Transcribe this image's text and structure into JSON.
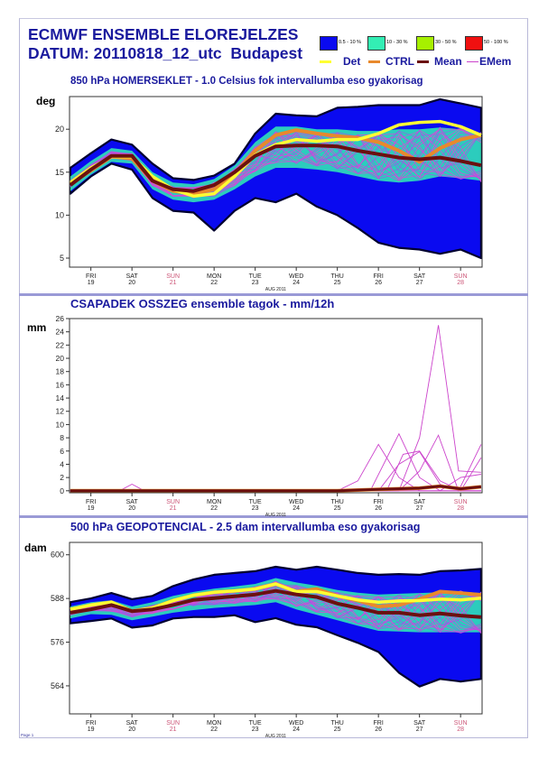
{
  "header": {
    "title": "ECMWF ENSEMBLE ELOREJELZES",
    "subtitle": "DATUM: 20110818_12_utc  Budapest"
  },
  "legend": {
    "bands": [
      {
        "label": "0.5 - 10 %",
        "color": "#0a0af0"
      },
      {
        "label": "10 - 30 %",
        "color": "#33eeb4"
      },
      {
        "label": "30 - 50 %",
        "color": "#a6f000"
      },
      {
        "label": "50 - 100 %",
        "color": "#f01010"
      }
    ],
    "lines": [
      {
        "label": "Det",
        "color": "#ffff33"
      },
      {
        "label": "CTRL",
        "color": "#e8892c"
      },
      {
        "label": "Mean",
        "color": "#6b1010"
      },
      {
        "label": "EMem",
        "color": "#cc44cc"
      }
    ]
  },
  "footer": "Page 1",
  "x_axis": {
    "month_label": "AUG 2011",
    "ticks": [
      {
        "day": 19,
        "weekday": "FRI",
        "date": "19",
        "weekend": false
      },
      {
        "day": 20,
        "weekday": "SAT",
        "date": "20",
        "weekend": false
      },
      {
        "day": 21,
        "weekday": "SUN",
        "date": "21",
        "weekend": true
      },
      {
        "day": 22,
        "weekday": "MON",
        "date": "22",
        "weekend": false
      },
      {
        "day": 23,
        "weekday": "TUE",
        "date": "23",
        "weekend": false
      },
      {
        "day": 24,
        "weekday": "WED",
        "date": "24",
        "weekend": false
      },
      {
        "day": 25,
        "weekday": "THU",
        "date": "25",
        "weekend": false
      },
      {
        "day": 26,
        "weekday": "FRI",
        "date": "26",
        "weekend": false
      },
      {
        "day": 27,
        "weekday": "SAT",
        "date": "27",
        "weekend": false
      },
      {
        "day": 28,
        "weekday": "SUN",
        "date": "28",
        "weekend": true
      }
    ]
  },
  "chart_data": [
    {
      "id": "temp",
      "type": "area",
      "title": "850 hPa HOMERSEKLET - 1.0 Celsius fok intervallumba eso gyakorisag",
      "ylabel": "deg",
      "xlabel": "AUG 2011",
      "ylim": [
        3.95,
        23.8
      ],
      "yticks": [
        5,
        10,
        15,
        20
      ],
      "x": [
        18.5,
        19,
        19.5,
        20,
        20.5,
        21,
        21.5,
        22,
        22.5,
        23,
        23.5,
        24,
        24.5,
        25,
        25.5,
        26,
        26.5,
        27,
        27.5,
        28,
        28.5
      ],
      "outer_max": [
        15.5,
        17.2,
        18.8,
        18.2,
        16,
        14.3,
        14.1,
        14.6,
        16,
        19.5,
        21.8,
        21.6,
        21.5,
        22.5,
        22.6,
        22.8,
        22.8,
        22.8,
        23.5,
        23,
        22.5
      ],
      "outer_min": [
        12.5,
        14.5,
        16,
        15.3,
        12,
        10.5,
        10.3,
        8.2,
        10.5,
        12,
        11.5,
        12.5,
        11,
        10,
        8.5,
        6.8,
        6.2,
        6,
        5.5,
        6,
        5
      ],
      "inner_max": [
        14.5,
        16.3,
        17.8,
        17.5,
        15,
        13.8,
        13.6,
        14.2,
        15.8,
        18.5,
        20.3,
        20.3,
        20,
        20,
        19.8,
        19.8,
        20,
        20,
        20.2,
        20,
        19.5
      ],
      "inner_min": [
        12.8,
        14.7,
        16.2,
        16,
        13,
        11.8,
        11.5,
        11.8,
        13,
        14.5,
        15.5,
        15.5,
        15.3,
        15,
        14.5,
        14,
        13.8,
        14,
        14.5,
        14.3,
        14
      ],
      "mean": [
        13.5,
        15.3,
        16.9,
        16.9,
        14,
        13,
        12.8,
        13.5,
        15,
        16.9,
        18,
        18.1,
        18.1,
        18,
        17.5,
        17.1,
        16.7,
        16.5,
        16.7,
        16.3,
        15.8
      ],
      "det": [
        13.8,
        15.5,
        16.8,
        16.8,
        14.5,
        13,
        12.2,
        12.5,
        14.5,
        17,
        18.2,
        18.8,
        18.6,
        18.8,
        18.8,
        19.5,
        20.5,
        20.8,
        20.9,
        20.3,
        19.3
      ],
      "ctrl": [
        13.6,
        15.2,
        16.8,
        16.6,
        14,
        12.8,
        12.5,
        13,
        14.8,
        17.5,
        19.3,
        19.9,
        19.5,
        19.2,
        19,
        18.5,
        17.5,
        16.2,
        17.8,
        18.8,
        19.3
      ]
    },
    {
      "id": "precip",
      "type": "line",
      "title": "CSAPADEK OSSZEG ensemble tagok - mm/12h",
      "ylabel": "mm",
      "xlabel": "AUG 2011",
      "ylim": [
        -0.3,
        26
      ],
      "yticks": [
        0,
        2,
        4,
        6,
        8,
        10,
        12,
        14,
        16,
        18,
        20,
        22,
        24,
        26
      ],
      "members": [
        [
          [
            18.5,
            0
          ],
          [
            25.5,
            0
          ],
          [
            26.5,
            0
          ],
          [
            27.0,
            8
          ],
          [
            27.46,
            25
          ],
          [
            27.95,
            3
          ],
          [
            28.5,
            2.8
          ]
        ],
        [
          [
            18.5,
            0
          ],
          [
            25,
            0
          ],
          [
            25.5,
            1.5
          ],
          [
            26,
            7
          ],
          [
            26.5,
            2
          ],
          [
            27,
            0
          ],
          [
            28.5,
            0
          ]
        ],
        [
          [
            18.5,
            0
          ],
          [
            25.8,
            0
          ],
          [
            26.5,
            8.6
          ],
          [
            27,
            2
          ],
          [
            27.5,
            0
          ],
          [
            28.5,
            0
          ]
        ],
        [
          [
            18.5,
            0
          ],
          [
            26,
            0
          ],
          [
            26.5,
            4
          ],
          [
            27,
            5.9
          ],
          [
            27.5,
            1
          ],
          [
            28,
            0
          ],
          [
            28.5,
            0
          ]
        ],
        [
          [
            18.5,
            0
          ],
          [
            26.5,
            0
          ],
          [
            27,
            3
          ],
          [
            27.46,
            8.4
          ],
          [
            27.95,
            0
          ],
          [
            28.5,
            7
          ]
        ],
        [
          [
            18.5,
            0
          ],
          [
            26.2,
            0
          ],
          [
            26.6,
            5.5
          ],
          [
            27,
            6
          ],
          [
            27.5,
            1.5
          ],
          [
            28,
            0
          ],
          [
            28.5,
            5
          ]
        ],
        [
          [
            18.5,
            0
          ],
          [
            27.5,
            0
          ],
          [
            28,
            2
          ],
          [
            28.5,
            2.5
          ]
        ],
        [
          [
            18.5,
            0
          ],
          [
            19.7,
            0
          ],
          [
            20,
            1
          ],
          [
            20.3,
            0
          ],
          [
            28.5,
            0
          ]
        ]
      ],
      "mean": [
        [
          18.5,
          0
        ],
        [
          25,
          0
        ],
        [
          26,
          0.2
        ],
        [
          27,
          0.4
        ],
        [
          27.5,
          0.7
        ],
        [
          28,
          0.3
        ],
        [
          28.5,
          0.6
        ]
      ]
    },
    {
      "id": "geo",
      "type": "area",
      "title": "500 hPa GEOPOTENCIAL - 2.5 dam intervallumba eso gyakorisag",
      "ylabel": "dam",
      "xlabel": "AUG 2011",
      "ylim": [
        556.3,
        603.4
      ],
      "yticks": [
        564,
        576,
        588,
        600
      ],
      "x": [
        18.5,
        19,
        19.5,
        20,
        20.5,
        21,
        21.5,
        22,
        22.5,
        23,
        23.5,
        24,
        24.5,
        25,
        25.5,
        26,
        26.5,
        27,
        27.5,
        28,
        28.5
      ],
      "outer_max": [
        587,
        588,
        589.5,
        587.8,
        588.7,
        591.4,
        593.2,
        594.5,
        595,
        595.5,
        596.7,
        595.9,
        596.7,
        595.9,
        595,
        594.5,
        594.7,
        594.5,
        595.5,
        595.7,
        596.1
      ],
      "outer_min": [
        581.2,
        581.8,
        582.5,
        580,
        580.6,
        582.5,
        582.9,
        582.9,
        583.4,
        581.5,
        582.6,
        580.8,
        580.1,
        577.9,
        575.8,
        573.3,
        567.6,
        563.8,
        565.9,
        565.2,
        565.9
      ],
      "inner_max": [
        585.8,
        587,
        587.5,
        585.8,
        587,
        588.7,
        589.8,
        590.7,
        591.3,
        592,
        593.6,
        592.4,
        591.5,
        590.3,
        589.6,
        589.1,
        589.3,
        589.5,
        589.7,
        589.9,
        589.5
      ],
      "inner_min": [
        582.5,
        583.7,
        583.5,
        582,
        583,
        584.1,
        584.8,
        585.4,
        585.8,
        586.2,
        587,
        585,
        583.5,
        582,
        580.5,
        579.1,
        578.9,
        578.7,
        578.7,
        578.7,
        578.7
      ],
      "mean": [
        584.1,
        585,
        586.2,
        584.5,
        585,
        586.2,
        587.6,
        588.1,
        588.6,
        589.1,
        590.1,
        589.1,
        588.4,
        586.6,
        585.4,
        584.1,
        584.1,
        583.4,
        583.9,
        583.3,
        582.9
      ],
      "det": [
        585,
        586.2,
        587,
        584.5,
        585.4,
        587.4,
        588.9,
        589.7,
        590.1,
        590.6,
        592,
        589.9,
        589.9,
        588.7,
        587.6,
        587,
        587.3,
        587.4,
        587.8,
        587.6,
        588.1
      ],
      "ctrl": [
        585,
        586.2,
        587,
        584.5,
        585.4,
        587.4,
        588.9,
        589.7,
        590.1,
        590.6,
        592,
        589.9,
        590.6,
        588.7,
        587.4,
        585.8,
        586.2,
        587.8,
        589.9,
        589.5,
        589
      ]
    }
  ]
}
